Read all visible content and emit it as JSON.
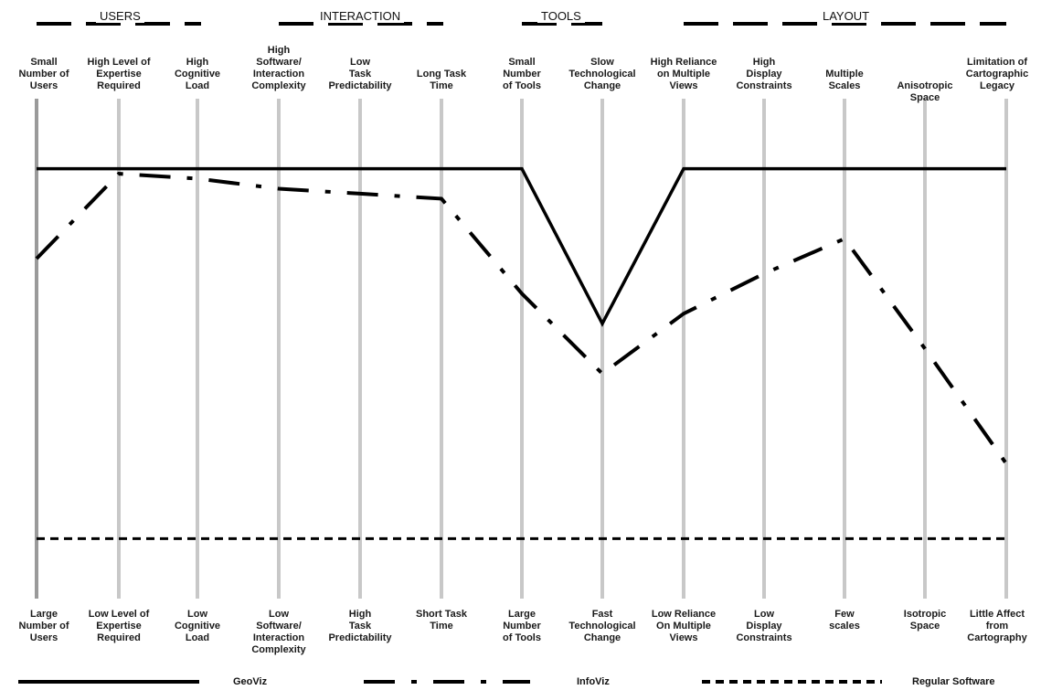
{
  "groups": [
    "USERS",
    "INTERACTION",
    "TOOLS",
    "LAYOUT"
  ],
  "axes": [
    {
      "top": "Small\nNumber of\nUsers",
      "bottom": "Large\nNumber of\nUsers"
    },
    {
      "top": "High Level of\nExpertise\nRequired",
      "bottom": "Low Level of\nExpertise\nRequired"
    },
    {
      "top": "High\nCognitive\nLoad",
      "bottom": "Low\nCognitive\nLoad"
    },
    {
      "top": "High\nSoftware/\nInteraction\nComplexity",
      "bottom": "Low\nSoftware/\nInteraction\nComplexity"
    },
    {
      "top": "Low\nTask\nPredictability",
      "bottom": "High\nTask\nPredictability"
    },
    {
      "top": "Long Task\nTime",
      "bottom": "Short Task\nTime"
    },
    {
      "top": "Small\nNumber\nof Tools",
      "bottom": "Large\nNumber\nof Tools"
    },
    {
      "top": "Slow\nTechnological\nChange",
      "bottom": "Fast\nTechnological\nChange"
    },
    {
      "top": "High Reliance\non Multiple\nViews",
      "bottom": "Low Reliance\nOn Multiple\nViews"
    },
    {
      "top": "High\nDisplay\nConstraints",
      "bottom": "Low\nDisplay\nConstraints"
    },
    {
      "top": "Multiple\nScales",
      "bottom": "Few\nscales"
    },
    {
      "top": "Anisotropic Space",
      "bottom": "Isotropic\nSpace"
    },
    {
      "top": "Limitation of\nCartographic\nLegacy",
      "bottom": "Little Affect\nfrom\nCartography"
    }
  ],
  "legend": [
    "GeoViz",
    "InfoViz",
    "Regular Software"
  ],
  "chart_data": {
    "type": "line",
    "categories": [
      "Small Number of Users",
      "High Level of Expertise Required",
      "High Cognitive Load",
      "High Software/Interaction Complexity",
      "Low Task Predictability",
      "Long Task Time",
      "Small Number of Tools",
      "Slow Technological Change",
      "High Reliance on Multiple Views",
      "High Display Constraints",
      "Multiple Scales",
      "Anisotropic Space",
      "Limitation of Cartographic Legacy"
    ],
    "ylim": [
      0,
      1
    ],
    "series": [
      {
        "name": "GeoViz",
        "style": "solid",
        "values": [
          0.86,
          0.86,
          0.86,
          0.86,
          0.86,
          0.86,
          0.86,
          0.55,
          0.86,
          0.86,
          0.86,
          0.86,
          0.86
        ]
      },
      {
        "name": "InfoViz",
        "style": "dash-dot",
        "values": [
          0.68,
          0.85,
          0.84,
          0.82,
          0.81,
          0.8,
          0.61,
          0.45,
          0.57,
          0.65,
          0.72,
          0.5,
          0.27
        ]
      },
      {
        "name": "Regular Software",
        "style": "dotted",
        "values": [
          0.12,
          0.12,
          0.12,
          0.12,
          0.12,
          0.12,
          0.12,
          0.12,
          0.12,
          0.12,
          0.12,
          0.12,
          0.12
        ]
      }
    ]
  },
  "colors": {
    "axis": "#c8c8c8",
    "first_axis": "#9a9a9a",
    "line": "#000000"
  }
}
